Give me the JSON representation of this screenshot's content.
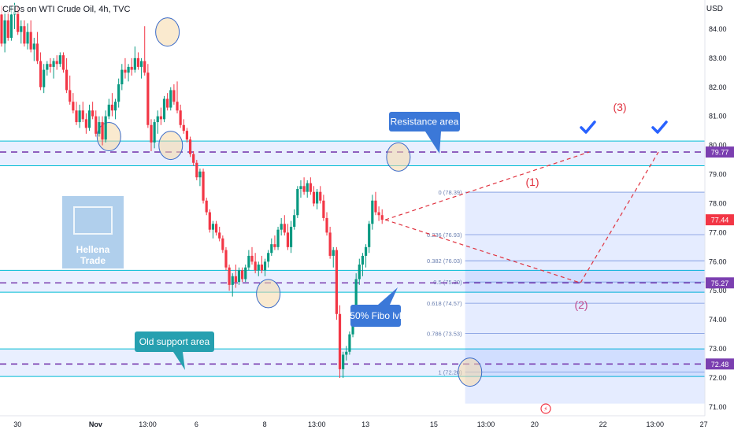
{
  "header": {
    "symbol": "CFDs on WTI Crude Oil, 4h, TVC",
    "currency": "USD"
  },
  "colors": {
    "up": "#089981",
    "down": "#f23645",
    "zone_fill": "#2962ff",
    "zone_line": "#00bcd4",
    "dashed_level": "#7b3fb0",
    "fib_fill": "#2962ff",
    "projection": "#e0323f",
    "callout_blue": "#3b78d8",
    "callout_teal": "#26a0b0",
    "checkmark": "#2962ff",
    "price_badge_red": "#f23645",
    "price_badge_purple": "#7b3fb0",
    "highlight_circle": "#f5d9a8"
  },
  "chart_data": {
    "type": "candlestick",
    "title": "CFDs on WTI Crude Oil, 4h, TVC",
    "yunit": "USD",
    "ylim": [
      70.7,
      85.0
    ],
    "y_ticks": [
      {
        "value": 84,
        "label": "84.00"
      },
      {
        "value": 83,
        "label": "83.00"
      },
      {
        "value": 82,
        "label": "82.00"
      },
      {
        "value": 81,
        "label": "81.00"
      },
      {
        "value": 80,
        "label": "80.00"
      },
      {
        "value": 79,
        "label": "79.00"
      },
      {
        "value": 78,
        "label": "78.00"
      },
      {
        "value": 77,
        "label": "77.00"
      },
      {
        "value": 76,
        "label": "76.00"
      },
      {
        "value": 75,
        "label": "75.00"
      },
      {
        "value": 74,
        "label": "74.00"
      },
      {
        "value": 73,
        "label": "73.00"
      },
      {
        "value": 72,
        "label": "72.00"
      },
      {
        "value": 71,
        "label": "71.00"
      }
    ],
    "x_ticks": [
      {
        "bar": 2,
        "label": "30"
      },
      {
        "bar": 26,
        "label": "Nov",
        "bold": true
      },
      {
        "bar": 42,
        "label": "13:00"
      },
      {
        "bar": 57,
        "label": "6"
      },
      {
        "bar": 78,
        "label": "8"
      },
      {
        "bar": 94,
        "label": "13:00"
      },
      {
        "bar": 109,
        "label": "13"
      },
      {
        "bar": 130,
        "label": "15"
      },
      {
        "bar": 146,
        "label": "13:00"
      },
      {
        "bar": 161,
        "label": "20"
      },
      {
        "bar": 182,
        "label": "22"
      },
      {
        "bar": 198,
        "label": "13:00"
      },
      {
        "bar": 213,
        "label": "27"
      }
    ],
    "candles": [
      {
        "o": 84.5,
        "h": 84.8,
        "l": 83.4,
        "c": 83.5
      },
      {
        "o": 83.5,
        "h": 84.6,
        "l": 83.2,
        "c": 84.3
      },
      {
        "o": 84.3,
        "h": 84.6,
        "l": 83.6,
        "c": 83.7
      },
      {
        "o": 83.7,
        "h": 84.8,
        "l": 83.6,
        "c": 84.5
      },
      {
        "o": 84.5,
        "h": 84.9,
        "l": 84.0,
        "c": 84.6
      },
      {
        "o": 84.6,
        "h": 84.8,
        "l": 83.8,
        "c": 83.9
      },
      {
        "o": 83.9,
        "h": 84.3,
        "l": 83.5,
        "c": 84.1
      },
      {
        "o": 84.1,
        "h": 84.3,
        "l": 83.4,
        "c": 83.5
      },
      {
        "o": 83.5,
        "h": 84.2,
        "l": 83.3,
        "c": 83.9
      },
      {
        "o": 83.9,
        "h": 84.3,
        "l": 83.2,
        "c": 83.3
      },
      {
        "o": 83.3,
        "h": 83.7,
        "l": 82.9,
        "c": 83.5
      },
      {
        "o": 83.5,
        "h": 83.9,
        "l": 82.8,
        "c": 82.9
      },
      {
        "o": 82.9,
        "h": 83.2,
        "l": 81.9,
        "c": 82.0
      },
      {
        "o": 82.0,
        "h": 82.8,
        "l": 81.8,
        "c": 82.6
      },
      {
        "o": 82.6,
        "h": 82.9,
        "l": 82.4,
        "c": 82.8
      },
      {
        "o": 82.8,
        "h": 83.0,
        "l": 82.5,
        "c": 82.7
      },
      {
        "o": 82.7,
        "h": 83.0,
        "l": 82.3,
        "c": 82.9
      },
      {
        "o": 82.9,
        "h": 83.1,
        "l": 82.6,
        "c": 82.8
      },
      {
        "o": 82.8,
        "h": 83.2,
        "l": 82.7,
        "c": 83.1
      },
      {
        "o": 83.1,
        "h": 83.2,
        "l": 82.5,
        "c": 82.6
      },
      {
        "o": 82.6,
        "h": 83.0,
        "l": 81.8,
        "c": 81.9
      },
      {
        "o": 81.9,
        "h": 82.4,
        "l": 81.4,
        "c": 81.5
      },
      {
        "o": 81.5,
        "h": 81.8,
        "l": 81.1,
        "c": 81.2
      },
      {
        "o": 81.2,
        "h": 81.5,
        "l": 80.7,
        "c": 80.8
      },
      {
        "o": 80.8,
        "h": 81.4,
        "l": 80.6,
        "c": 81.2
      },
      {
        "o": 81.2,
        "h": 81.5,
        "l": 80.8,
        "c": 80.9
      },
      {
        "o": 80.9,
        "h": 81.1,
        "l": 80.4,
        "c": 80.6
      },
      {
        "o": 80.6,
        "h": 81.4,
        "l": 80.5,
        "c": 81.2
      },
      {
        "o": 81.2,
        "h": 81.5,
        "l": 80.9,
        "c": 81.0
      },
      {
        "o": 81.0,
        "h": 81.2,
        "l": 80.3,
        "c": 80.4
      },
      {
        "o": 80.4,
        "h": 81.0,
        "l": 80.3,
        "c": 80.8
      },
      {
        "o": 80.8,
        "h": 81.0,
        "l": 80.0,
        "c": 80.2
      },
      {
        "o": 80.2,
        "h": 81.2,
        "l": 80.1,
        "c": 81.0
      },
      {
        "o": 81.0,
        "h": 81.6,
        "l": 80.9,
        "c": 81.4
      },
      {
        "o": 81.4,
        "h": 81.8,
        "l": 81.0,
        "c": 81.2
      },
      {
        "o": 81.2,
        "h": 81.6,
        "l": 80.9,
        "c": 81.5
      },
      {
        "o": 81.5,
        "h": 82.3,
        "l": 81.3,
        "c": 82.1
      },
      {
        "o": 82.1,
        "h": 82.8,
        "l": 81.9,
        "c": 82.6
      },
      {
        "o": 82.6,
        "h": 83.0,
        "l": 82.3,
        "c": 82.5
      },
      {
        "o": 82.5,
        "h": 82.8,
        "l": 82.2,
        "c": 82.7
      },
      {
        "o": 82.7,
        "h": 83.0,
        "l": 82.4,
        "c": 82.6
      },
      {
        "o": 82.6,
        "h": 83.4,
        "l": 82.5,
        "c": 83.0
      },
      {
        "o": 83.0,
        "h": 83.2,
        "l": 82.6,
        "c": 82.7
      },
      {
        "o": 82.7,
        "h": 83.0,
        "l": 82.3,
        "c": 82.9
      },
      {
        "o": 82.9,
        "h": 84.1,
        "l": 82.4,
        "c": 82.5
      },
      {
        "o": 82.5,
        "h": 82.8,
        "l": 80.6,
        "c": 80.7
      },
      {
        "o": 80.7,
        "h": 80.9,
        "l": 79.8,
        "c": 80.1
      },
      {
        "o": 80.1,
        "h": 80.9,
        "l": 79.9,
        "c": 80.8
      },
      {
        "o": 80.8,
        "h": 81.2,
        "l": 80.4,
        "c": 81.0
      },
      {
        "o": 81.0,
        "h": 81.3,
        "l": 80.7,
        "c": 80.9
      },
      {
        "o": 80.9,
        "h": 81.7,
        "l": 80.8,
        "c": 81.6
      },
      {
        "o": 81.6,
        "h": 81.8,
        "l": 81.2,
        "c": 81.3
      },
      {
        "o": 81.3,
        "h": 82.0,
        "l": 81.2,
        "c": 81.9
      },
      {
        "o": 81.9,
        "h": 82.1,
        "l": 81.4,
        "c": 81.5
      },
      {
        "o": 81.5,
        "h": 82.2,
        "l": 81.1,
        "c": 81.2
      },
      {
        "o": 81.2,
        "h": 81.4,
        "l": 80.6,
        "c": 80.7
      },
      {
        "o": 80.7,
        "h": 80.9,
        "l": 80.4,
        "c": 80.5
      },
      {
        "o": 80.5,
        "h": 80.6,
        "l": 80.1,
        "c": 80.2
      },
      {
        "o": 80.2,
        "h": 80.3,
        "l": 79.6,
        "c": 79.7
      },
      {
        "o": 79.7,
        "h": 79.8,
        "l": 79.3,
        "c": 79.4
      },
      {
        "o": 79.4,
        "h": 79.5,
        "l": 78.8,
        "c": 78.9
      },
      {
        "o": 78.9,
        "h": 79.2,
        "l": 78.6,
        "c": 79.1
      },
      {
        "o": 79.1,
        "h": 79.2,
        "l": 78.0,
        "c": 78.1
      },
      {
        "o": 78.1,
        "h": 78.2,
        "l": 77.6,
        "c": 77.7
      },
      {
        "o": 77.7,
        "h": 77.8,
        "l": 77.0,
        "c": 77.1
      },
      {
        "o": 77.1,
        "h": 77.4,
        "l": 76.8,
        "c": 77.3
      },
      {
        "o": 77.3,
        "h": 77.4,
        "l": 76.9,
        "c": 77.0
      },
      {
        "o": 77.0,
        "h": 77.2,
        "l": 76.7,
        "c": 76.8
      },
      {
        "o": 76.8,
        "h": 76.9,
        "l": 76.3,
        "c": 76.4
      },
      {
        "o": 76.4,
        "h": 76.5,
        "l": 75.7,
        "c": 75.8
      },
      {
        "o": 75.8,
        "h": 75.9,
        "l": 75.0,
        "c": 75.2
      },
      {
        "o": 75.2,
        "h": 75.6,
        "l": 74.8,
        "c": 75.5
      },
      {
        "o": 75.5,
        "h": 75.9,
        "l": 75.1,
        "c": 75.3
      },
      {
        "o": 75.3,
        "h": 75.8,
        "l": 75.2,
        "c": 75.7
      },
      {
        "o": 75.7,
        "h": 75.8,
        "l": 75.3,
        "c": 75.4
      },
      {
        "o": 75.4,
        "h": 75.9,
        "l": 75.3,
        "c": 75.8
      },
      {
        "o": 75.8,
        "h": 76.4,
        "l": 75.7,
        "c": 76.2
      },
      {
        "o": 76.2,
        "h": 76.5,
        "l": 75.9,
        "c": 76.0
      },
      {
        "o": 76.0,
        "h": 76.3,
        "l": 75.6,
        "c": 75.7
      },
      {
        "o": 75.7,
        "h": 76.0,
        "l": 75.5,
        "c": 75.9
      },
      {
        "o": 75.9,
        "h": 76.2,
        "l": 75.6,
        "c": 75.7
      },
      {
        "o": 75.7,
        "h": 76.1,
        "l": 75.5,
        "c": 76.0
      },
      {
        "o": 76.0,
        "h": 76.4,
        "l": 75.8,
        "c": 76.3
      },
      {
        "o": 76.3,
        "h": 76.8,
        "l": 76.2,
        "c": 76.6
      },
      {
        "o": 76.6,
        "h": 76.9,
        "l": 76.4,
        "c": 76.5
      },
      {
        "o": 76.5,
        "h": 77.2,
        "l": 76.4,
        "c": 77.1
      },
      {
        "o": 77.1,
        "h": 77.5,
        "l": 76.9,
        "c": 77.3
      },
      {
        "o": 77.3,
        "h": 77.6,
        "l": 76.9,
        "c": 77.0
      },
      {
        "o": 77.0,
        "h": 77.3,
        "l": 76.4,
        "c": 76.5
      },
      {
        "o": 76.5,
        "h": 77.4,
        "l": 76.3,
        "c": 77.2
      },
      {
        "o": 77.2,
        "h": 77.8,
        "l": 77.1,
        "c": 77.6
      },
      {
        "o": 77.6,
        "h": 78.6,
        "l": 77.5,
        "c": 78.5
      },
      {
        "o": 78.5,
        "h": 78.8,
        "l": 78.2,
        "c": 78.6
      },
      {
        "o": 78.6,
        "h": 78.9,
        "l": 78.3,
        "c": 78.4
      },
      {
        "o": 78.4,
        "h": 78.8,
        "l": 78.2,
        "c": 78.7
      },
      {
        "o": 78.7,
        "h": 78.9,
        "l": 78.3,
        "c": 78.4
      },
      {
        "o": 78.4,
        "h": 78.6,
        "l": 77.9,
        "c": 78.0
      },
      {
        "o": 78.0,
        "h": 78.5,
        "l": 77.8,
        "c": 78.4
      },
      {
        "o": 78.4,
        "h": 78.6,
        "l": 78.0,
        "c": 78.1
      },
      {
        "o": 78.1,
        "h": 78.3,
        "l": 77.4,
        "c": 77.5
      },
      {
        "o": 77.5,
        "h": 77.7,
        "l": 76.9,
        "c": 77.0
      },
      {
        "o": 77.0,
        "h": 77.2,
        "l": 76.1,
        "c": 76.2
      },
      {
        "o": 76.2,
        "h": 76.5,
        "l": 75.8,
        "c": 76.4
      },
      {
        "o": 76.4,
        "h": 76.5,
        "l": 74.0,
        "c": 74.2
      },
      {
        "o": 74.2,
        "h": 74.5,
        "l": 72.0,
        "c": 72.3
      },
      {
        "o": 72.3,
        "h": 72.9,
        "l": 72.0,
        "c": 72.8
      },
      {
        "o": 72.8,
        "h": 73.1,
        "l": 72.6,
        "c": 72.9
      },
      {
        "o": 72.9,
        "h": 73.6,
        "l": 72.8,
        "c": 73.5
      },
      {
        "o": 73.5,
        "h": 74.2,
        "l": 73.4,
        "c": 74.1
      },
      {
        "o": 74.1,
        "h": 75.6,
        "l": 74.0,
        "c": 75.4
      },
      {
        "o": 75.4,
        "h": 76.1,
        "l": 75.2,
        "c": 75.9
      },
      {
        "o": 75.9,
        "h": 76.3,
        "l": 75.5,
        "c": 76.2
      },
      {
        "o": 76.2,
        "h": 76.6,
        "l": 75.8,
        "c": 76.5
      },
      {
        "o": 76.5,
        "h": 77.4,
        "l": 76.3,
        "c": 77.3
      },
      {
        "o": 77.3,
        "h": 78.3,
        "l": 77.1,
        "c": 78.1
      },
      {
        "o": 78.1,
        "h": 78.4,
        "l": 77.6,
        "c": 77.7
      },
      {
        "o": 77.7,
        "h": 77.9,
        "l": 77.4,
        "c": 77.6
      },
      {
        "o": 77.6,
        "h": 77.8,
        "l": 77.3,
        "c": 77.44
      }
    ],
    "candle_x_map": [
      0,
      2,
      4,
      6,
      8,
      10,
      12,
      14,
      16,
      18,
      20,
      22,
      24,
      26,
      28,
      30,
      32,
      34,
      36,
      38,
      40,
      42,
      44,
      46,
      48,
      50,
      52,
      54,
      56,
      58,
      60,
      62,
      64,
      66,
      68,
      70,
      72,
      74,
      76,
      78,
      80,
      82,
      84,
      86,
      88,
      90,
      92,
      94,
      96,
      98,
      100,
      102,
      104,
      106,
      108,
      110,
      112,
      114,
      116,
      118,
      120,
      122,
      124,
      126,
      128,
      130,
      132,
      134,
      136,
      138,
      140,
      142,
      144,
      146,
      148,
      150,
      152,
      154,
      156,
      158,
      160,
      162,
      164,
      166,
      168,
      170,
      172,
      174,
      176,
      178,
      180,
      182,
      184,
      186,
      188,
      190,
      192,
      194,
      196,
      198,
      200,
      202,
      204,
      206,
      208,
      210,
      212,
      214,
      216,
      218,
      220,
      222,
      224,
      226,
      228,
      230
    ],
    "levels": [
      {
        "price": 79.77,
        "label": "79.77",
        "badge": "purple"
      },
      {
        "price": 75.27,
        "label": "75.27",
        "badge": "purple"
      },
      {
        "price": 72.48,
        "label": "72.48",
        "badge": "purple"
      },
      {
        "price": 77.44,
        "label": "77.44",
        "badge": "red"
      }
    ],
    "zones": [
      {
        "name": "resistance",
        "low": 79.3,
        "high": 80.15
      },
      {
        "name": "fifty",
        "low": 74.95,
        "high": 75.7
      },
      {
        "name": "old-support",
        "low": 72.05,
        "high": 73.0
      }
    ],
    "fibonacci": {
      "high": 78.39,
      "low": 72.2,
      "levels": [
        {
          "ratio": "0",
          "price": 78.39,
          "label": "0 (78.39)"
        },
        {
          "ratio": "0.236",
          "price": 76.93,
          "label": "0.236 (76.93)"
        },
        {
          "ratio": "0.382",
          "price": 76.03,
          "label": "0.382 (76.03)"
        },
        {
          "ratio": "0.5",
          "price": 75.3,
          "label": "0.5 (75.30)"
        },
        {
          "ratio": "0.618",
          "price": 74.57,
          "label": "0.618 (74.57)"
        },
        {
          "ratio": "0.786",
          "price": 73.53,
          "label": "0.786 (73.53)"
        },
        {
          "ratio": "1",
          "price": 72.2,
          "label": "1 (72.20)"
        }
      ]
    },
    "projection": [
      {
        "price": 77.44,
        "label": ""
      },
      {
        "price": 75.27,
        "label": "(2)"
      },
      {
        "price": 79.77,
        "label": ""
      }
    ],
    "wave_labels": [
      {
        "label": "(1)"
      },
      {
        "label": "(2)"
      },
      {
        "label": "(3)"
      }
    ]
  },
  "annotations": {
    "resistance": "Resistance area",
    "fibo": "50% Fibo lvl",
    "old_support": "Old support area",
    "logo_line1": "Hellena",
    "logo_line2": "Trade"
  }
}
